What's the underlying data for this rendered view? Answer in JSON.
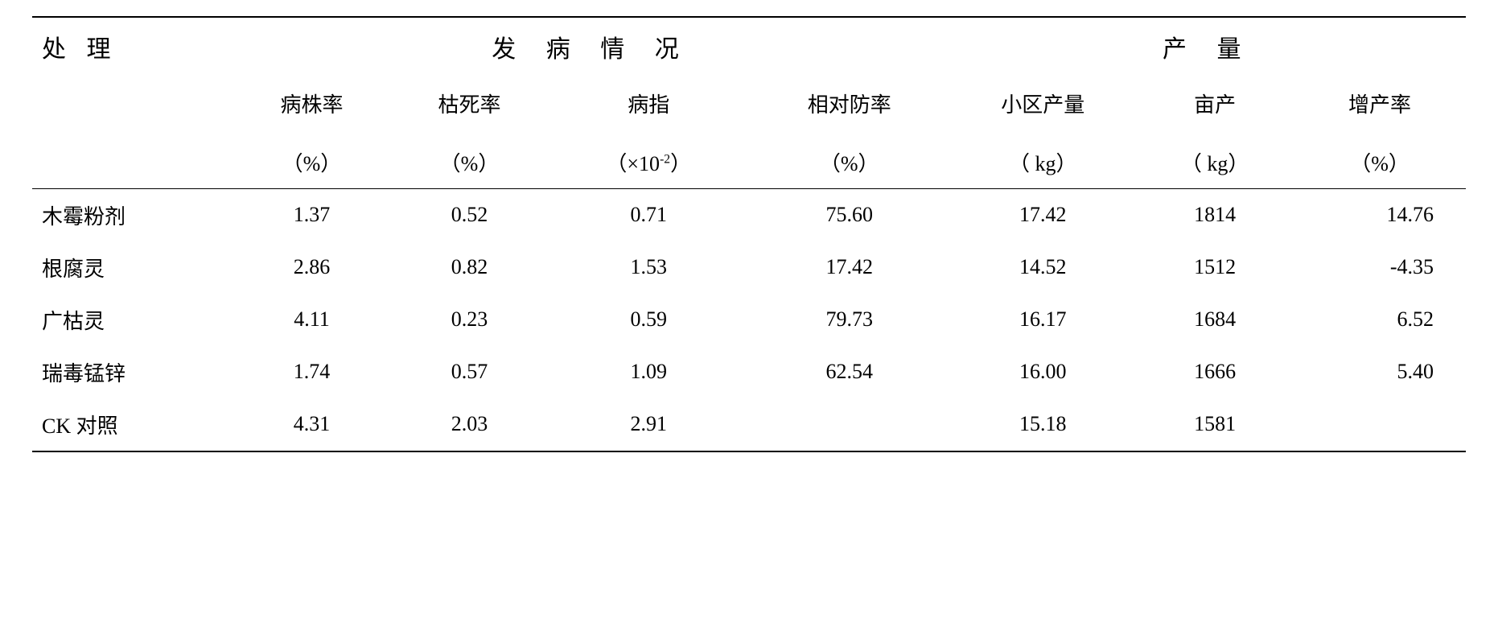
{
  "table": {
    "header_main": {
      "treatment": "处 理",
      "disease": "发 病 情 况",
      "yield": "产 量"
    },
    "sub_headers": {
      "disease_rate": "病株率",
      "death_rate": "枯死率",
      "disease_index": "病指",
      "control_rate": "相对防率",
      "plot_yield": "小区产量",
      "mu_yield": "亩产",
      "increase_rate": "增产率"
    },
    "units": {
      "disease_rate": "（%）",
      "death_rate": "（%）",
      "disease_index_prefix": "（×10",
      "disease_index_sup": "-2",
      "disease_index_suffix": "）",
      "control_rate": "（%）",
      "plot_yield": "（ kg）",
      "mu_yield": "（ kg）",
      "increase_rate": "（%）"
    },
    "rows": [
      {
        "label": "木霉粉剂",
        "disease_rate": "1.37",
        "death_rate": "0.52",
        "disease_index": "0.71",
        "control_rate": "75.60",
        "plot_yield": "17.42",
        "mu_yield": "1814",
        "increase_rate": "14.76"
      },
      {
        "label": "根腐灵",
        "disease_rate": "2.86",
        "death_rate": "0.82",
        "disease_index": "1.53",
        "control_rate": "17.42",
        "plot_yield": "14.52",
        "mu_yield": "1512",
        "increase_rate": "-4.35"
      },
      {
        "label": "广枯灵",
        "disease_rate": "4.11",
        "death_rate": "0.23",
        "disease_index": "0.59",
        "control_rate": "79.73",
        "plot_yield": "16.17",
        "mu_yield": "1684",
        "increase_rate": "6.52"
      },
      {
        "label": "瑞毒锰锌",
        "disease_rate": "1.74",
        "death_rate": "0.57",
        "disease_index": "1.09",
        "control_rate": "62.54",
        "plot_yield": "16.00",
        "mu_yield": "1666",
        "increase_rate": "5.40"
      },
      {
        "label": "CK 对照",
        "disease_rate": "4.31",
        "death_rate": "2.03",
        "disease_index": "2.91",
        "control_rate": "",
        "plot_yield": "15.18",
        "mu_yield": "1581",
        "increase_rate": ""
      }
    ],
    "col_widths": [
      "14%",
      "11%",
      "11%",
      "14%",
      "14%",
      "13%",
      "11%",
      "12%"
    ],
    "colors": {
      "text": "#000000",
      "background": "#ffffff",
      "rule": "#000000"
    },
    "font_sizes": {
      "header_main": 30,
      "sub_header": 26,
      "body": 26
    }
  }
}
